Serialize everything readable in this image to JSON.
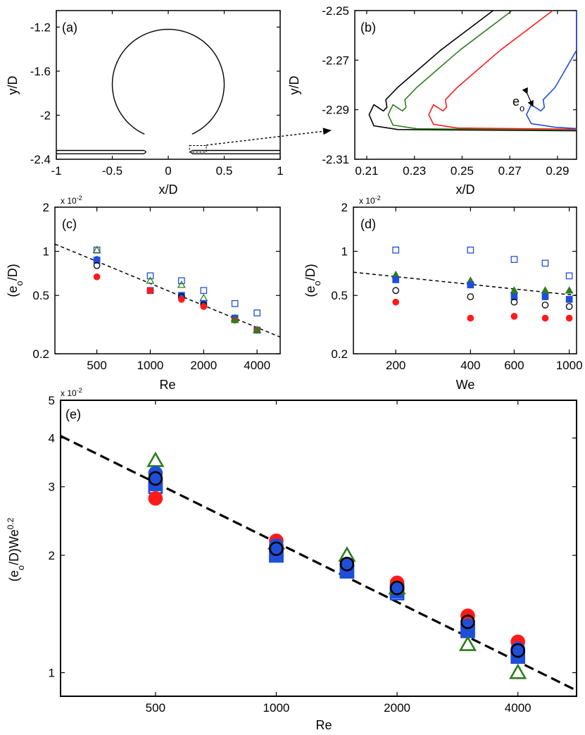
{
  "panels": {
    "a": {
      "label": "(a)",
      "xlabel": "x/D",
      "ylabel": "y/D",
      "xlim": [
        -1,
        1
      ],
      "ylim": [
        -2.4,
        -1.05
      ],
      "xticks": [
        -1,
        -0.5,
        0,
        0.5,
        1
      ],
      "xtick_labels": [
        "-1",
        "-0.5",
        "0",
        "0.5",
        "1"
      ],
      "yticks": [
        -2.4,
        -2.0,
        -1.6,
        -1.2
      ],
      "ytick_labels": [
        "-2.4",
        "-2",
        "-1.6",
        "-1.2"
      ],
      "drop": {
        "center": [
          0,
          -1.72
        ],
        "radius": 0.5
      },
      "zoom_box": {
        "x": [
          0.19,
          0.34
        ],
        "y": [
          -2.335,
          -2.275
        ]
      }
    },
    "b": {
      "label": "(b)",
      "xlabel": "x/D",
      "ylabel": "y/D",
      "xlim": [
        0.205,
        0.298
      ],
      "ylim": [
        -2.31,
        -2.25
      ],
      "xticks": [
        0.21,
        0.23,
        0.25,
        0.27,
        0.29
      ],
      "xtick_labels": [
        "0.21",
        "0.23",
        "0.25",
        "0.27",
        "0.29"
      ],
      "yticks": [
        -2.31,
        -2.29,
        -2.27,
        -2.25
      ],
      "ytick_labels": [
        "-2.31",
        "-2.29",
        "-2.27",
        "-2.25"
      ],
      "annotation": "e",
      "annotation_sub": "o",
      "profiles": [
        {
          "color": "#000000",
          "tip": 0.211
        },
        {
          "color": "#2e7d1f",
          "tip": 0.219
        },
        {
          "color": "#ff1a1a",
          "tip": 0.236
        },
        {
          "color": "#1f4fd8",
          "tip": 0.277
        }
      ]
    },
    "c": {
      "label": "(c)",
      "xlabel": "Re",
      "ylabel": "(e",
      "ylabel_sub": "o",
      "ylabel_tail": "/D)",
      "multiplier": "x 10",
      "multiplier_exp": "-2",
      "xlim": [
        290,
        5400
      ],
      "ylim": [
        0.2,
        2
      ],
      "xticks": [
        500,
        1000,
        2000,
        4000
      ],
      "xtick_labels": [
        "500",
        "1000",
        "2000",
        "4000"
      ],
      "yticks": [
        0.2,
        0.5,
        1,
        2
      ],
      "ytick_labels": [
        "0.2",
        "0.5",
        "1",
        "2"
      ],
      "fit": {
        "x": [
          290,
          5400
        ],
        "y": [
          1.12,
          0.26
        ]
      }
    },
    "d": {
      "label": "(d)",
      "xlabel": "We",
      "ylabel": "(e",
      "ylabel_sub": "o",
      "ylabel_tail": "/D)",
      "multiplier": "x 10",
      "multiplier_exp": "-2",
      "xlim": [
        135,
        1070
      ],
      "ylim": [
        0.2,
        2
      ],
      "xticks": [
        200,
        400,
        600,
        1000
      ],
      "xtick_labels": [
        "200",
        "400",
        "600",
        "1000"
      ],
      "yticks": [
        0.2,
        0.5,
        1,
        2
      ],
      "ytick_labels": [
        "0.2",
        "0.5",
        "1",
        "2"
      ],
      "fit": {
        "x": [
          135,
          1070
        ],
        "y": [
          0.72,
          0.5
        ]
      }
    },
    "e": {
      "label": "(e)",
      "xlabel": "Re",
      "ylabel": "(e",
      "ylabel_sub": "o",
      "ylabel_tail": "/D)We",
      "ylabel_sup": "0.2",
      "multiplier": "x 10",
      "multiplier_exp": "-2",
      "xlim": [
        290,
        5600
      ],
      "ylim": [
        0.87,
        5
      ],
      "xticks": [
        500,
        1000,
        2000,
        4000
      ],
      "xtick_labels": [
        "500",
        "1000",
        "2000",
        "4000"
      ],
      "yticks": [
        1,
        2,
        3,
        4,
        5
      ],
      "ytick_labels": [
        "1",
        "2",
        "3",
        "4",
        "5"
      ],
      "fit": {
        "x": [
          290,
          5600
        ],
        "y": [
          4.05,
          0.9
        ]
      }
    }
  },
  "chart_data": [
    {
      "panel": "c",
      "type": "scatter",
      "scale": "log-log",
      "x": [
        500,
        1000,
        1500,
        2000,
        3000,
        4000
      ],
      "series": [
        {
          "marker": "open-square",
          "color": "#1f4fd8",
          "values": [
            1.02,
            0.68,
            0.63,
            0.54,
            0.44,
            0.38
          ]
        },
        {
          "marker": "open-triangle",
          "color": "#2e7d1f",
          "values": [
            1.02,
            0.63,
            0.59,
            0.48,
            0.35,
            0.29
          ]
        },
        {
          "marker": "filled-square",
          "color": "#1f4fd8",
          "values": [
            0.87,
            0.54,
            0.5,
            0.44,
            0.35,
            0.29
          ]
        },
        {
          "marker": "filled-circle",
          "color": "#1f4fd8",
          "values": [
            0.88,
            0.54,
            0.49,
            0.43,
            0.34,
            0.29
          ]
        },
        {
          "marker": "open-circle",
          "color": "#000000",
          "values": [
            0.8,
            0.54,
            0.49,
            0.43,
            0.34,
            0.29
          ]
        },
        {
          "marker": "filled-circle",
          "color": "#ff1a1a",
          "values": [
            0.67,
            0.54,
            0.47,
            0.42,
            0.34,
            0.29
          ]
        },
        {
          "marker": "filled-triangle",
          "color": "#2e7d1f",
          "values": [
            null,
            null,
            null,
            null,
            0.34,
            0.29
          ]
        }
      ]
    },
    {
      "panel": "d",
      "type": "scatter",
      "scale": "log-log",
      "x": [
        200,
        400,
        600,
        800,
        1000
      ],
      "series": [
        {
          "marker": "open-square",
          "color": "#1f4fd8",
          "values": [
            1.02,
            1.02,
            0.88,
            0.83,
            0.68
          ]
        },
        {
          "marker": "filled-triangle",
          "color": "#2e7d1f",
          "values": [
            0.69,
            0.63,
            0.54,
            0.54,
            0.54
          ]
        },
        {
          "marker": "filled-square",
          "color": "#1f4fd8",
          "values": [
            0.64,
            0.59,
            0.49,
            0.49,
            0.47
          ]
        },
        {
          "marker": "open-circle",
          "color": "#000000",
          "values": [
            0.54,
            0.49,
            0.45,
            0.43,
            0.42
          ]
        },
        {
          "marker": "filled-circle",
          "color": "#ff1a1a",
          "values": [
            0.45,
            0.35,
            0.36,
            0.35,
            0.35
          ]
        }
      ]
    },
    {
      "panel": "e",
      "type": "scatter",
      "scale": "log-log",
      "x": [
        500,
        1000,
        1500,
        2000,
        3000,
        4000
      ],
      "series": [
        {
          "marker": "open-square",
          "color": "#1f4fd8",
          "values": [
            3.0,
            2.0,
            1.82,
            1.6,
            1.28,
            1.1
          ]
        },
        {
          "marker": "filled-square",
          "color": "#1f4fd8",
          "values": [
            3.05,
            2.0,
            1.82,
            1.62,
            1.28,
            1.1
          ]
        },
        {
          "marker": "open-triangle",
          "color": "#2e7d1f",
          "values": [
            3.5,
            2.15,
            2.0,
            1.65,
            1.18,
            1.0
          ]
        },
        {
          "marker": "filled-circle",
          "color": "#ff1a1a",
          "values": [
            2.8,
            2.18,
            1.9,
            1.7,
            1.4,
            1.2
          ]
        },
        {
          "marker": "filled-circle",
          "color": "#1f4fd8",
          "values": [
            3.25,
            2.12,
            1.88,
            1.65,
            1.32,
            1.15
          ]
        },
        {
          "marker": "open-circle",
          "color": "#000000",
          "values": [
            3.15,
            2.08,
            1.9,
            1.65,
            1.35,
            1.14
          ]
        }
      ]
    }
  ]
}
